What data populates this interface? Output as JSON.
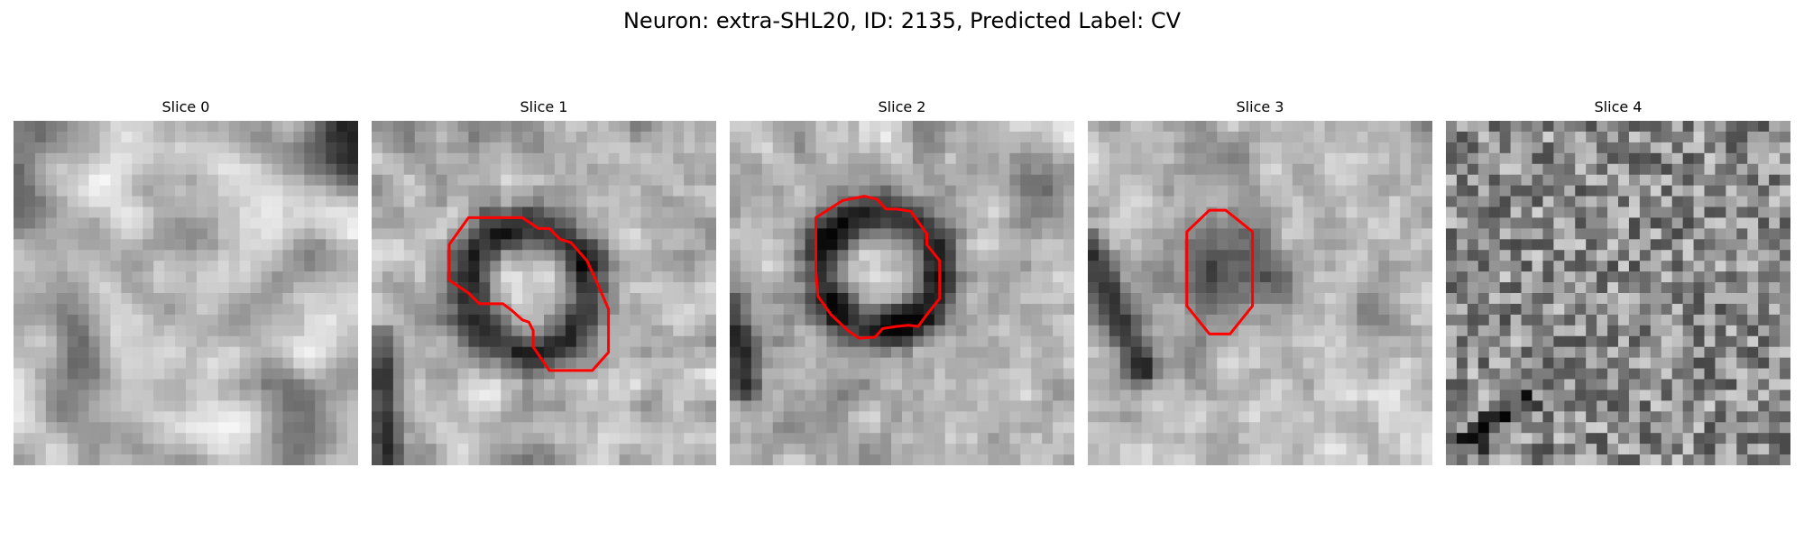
{
  "title": "Neuron: extra-SHL20, ID: 2135, Predicted Label: CV",
  "panels": [
    {
      "label": "Slice 0"
    },
    {
      "label": "Slice 1"
    },
    {
      "label": "Slice 2"
    },
    {
      "label": "Slice 3"
    },
    {
      "label": "Slice 4"
    }
  ],
  "colors": {
    "contour": "#ff0000"
  }
}
